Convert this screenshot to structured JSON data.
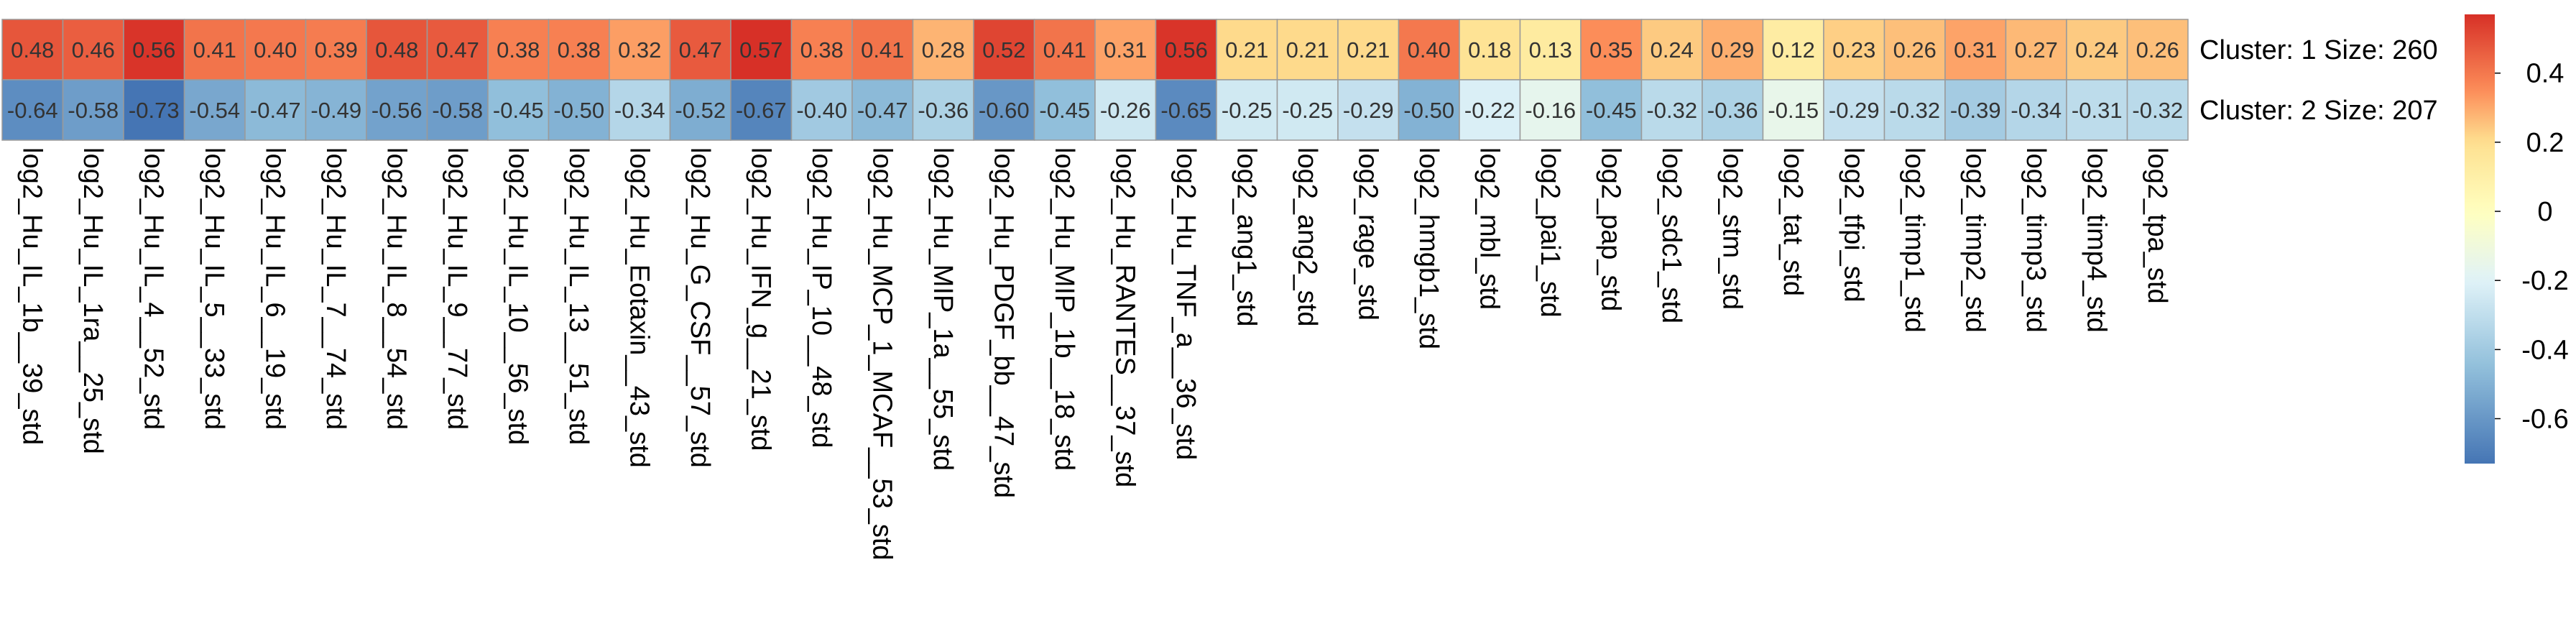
{
  "chart_data": {
    "type": "heatmap",
    "title": "",
    "xlabel": "",
    "ylabel": "",
    "columns": [
      "log2_Hu_IL_1b__39_std",
      "log2_Hu_IL_1ra__25_std",
      "log2_Hu_IL_4__52_std",
      "log2_Hu_IL_5__33_std",
      "log2_Hu_IL_6__19_std",
      "log2_Hu_IL_7__74_std",
      "log2_Hu_IL_8__54_std",
      "log2_Hu_IL_9__77_std",
      "log2_Hu_IL_10__56_std",
      "log2_Hu_IL_13__51_std",
      "log2_Hu_Eotaxin__43_std",
      "log2_Hu_G_CSF__57_std",
      "log2_Hu_IFN_g__21_std",
      "log2_Hu_IP_10__48_std",
      "log2_Hu_MCP_1_MCAF__53_std",
      "log2_Hu_MIP_1a__55_std",
      "log2_Hu_PDGF_bb__47_std",
      "log2_Hu_MIP_1b__18_std",
      "log2_Hu_RANTES__37_std",
      "log2_Hu_TNF_a__36_std",
      "log2_ang1_std",
      "log2_ang2_std",
      "log2_rage_std",
      "log2_hmgb1_std",
      "log2_mbl_std",
      "log2_pai1_std",
      "log2_pap_std",
      "log2_sdc1_std",
      "log2_stm_std",
      "log2_tat_std",
      "log2_tfpi_std",
      "log2_timp1_std",
      "log2_timp2_std",
      "log2_timp3_std",
      "log2_timp4_std",
      "log2_tpa_std"
    ],
    "rows": [
      {
        "label": "Cluster: 1 Size: 260",
        "values": [
          0.48,
          0.46,
          0.56,
          0.41,
          0.4,
          0.39,
          0.48,
          0.47,
          0.38,
          0.38,
          0.32,
          0.47,
          0.57,
          0.38,
          0.41,
          0.28,
          0.52,
          0.41,
          0.31,
          0.56,
          0.21,
          0.21,
          0.21,
          0.4,
          0.18,
          0.13,
          0.35,
          0.24,
          0.29,
          0.12,
          0.23,
          0.26,
          0.31,
          0.27,
          0.24,
          0.26
        ],
        "value_labels": [
          "0.48",
          "0.46",
          "0.56",
          "0.41",
          "0.40",
          "0.39",
          "0.48",
          "0.47",
          "0.38",
          "0.38",
          "0.32",
          "0.47",
          "0.57",
          "0.38",
          "0.41",
          "0.28",
          "0.52",
          "0.41",
          "0.31",
          "0.56",
          "0.21",
          "0.21",
          "0.21",
          "0.40",
          "0.18",
          "0.13",
          "0.35",
          "0.24",
          "0.29",
          "0.12",
          "0.23",
          "0.26",
          "0.31",
          "0.27",
          "0.24",
          "0.26"
        ]
      },
      {
        "label": "Cluster: 2 Size: 207",
        "values": [
          -0.64,
          -0.58,
          -0.73,
          -0.54,
          -0.47,
          -0.49,
          -0.56,
          -0.58,
          -0.45,
          -0.5,
          -0.34,
          -0.52,
          -0.67,
          -0.4,
          -0.47,
          -0.36,
          -0.6,
          -0.45,
          -0.26,
          -0.65,
          -0.25,
          -0.25,
          -0.29,
          -0.5,
          -0.22,
          -0.16,
          -0.45,
          -0.32,
          -0.36,
          -0.15,
          -0.29,
          -0.32,
          -0.39,
          -0.34,
          -0.31,
          -0.32
        ],
        "value_labels": [
          "-0.64",
          "-0.58",
          "-0.73",
          "-0.54",
          "-0.47",
          "-0.49",
          "-0.56",
          "-0.58",
          "-0.45",
          "-0.50",
          "-0.34",
          "-0.52",
          "-0.67",
          "-0.40",
          "-0.47",
          "-0.36",
          "-0.60",
          "-0.45",
          "-0.26",
          "-0.65",
          "-0.25",
          "-0.25",
          "-0.29",
          "-0.50",
          "-0.22",
          "-0.16",
          "-0.45",
          "-0.32",
          "-0.36",
          "-0.15",
          "-0.29",
          "-0.32",
          "-0.39",
          "-0.34",
          "-0.31",
          "-0.32"
        ]
      }
    ],
    "color_scale": {
      "min": -0.73,
      "max": 0.57,
      "stops": [
        {
          "value": -0.73,
          "color": "#4575b4"
        },
        {
          "value": -0.45,
          "color": "#91bfdb"
        },
        {
          "value": -0.2,
          "color": "#e0f3f8"
        },
        {
          "value": 0.0,
          "color": "#ffffbf"
        },
        {
          "value": 0.2,
          "color": "#fee090"
        },
        {
          "value": 0.35,
          "color": "#fc8d59"
        },
        {
          "value": 0.57,
          "color": "#d73027"
        }
      ]
    },
    "colorbar": {
      "ticks": [
        0.4,
        0.2,
        0,
        -0.2,
        -0.4,
        -0.6
      ],
      "tick_labels": [
        "0.4",
        "0.2",
        "0",
        "-0.2",
        "-0.4",
        "-0.6"
      ]
    },
    "grid": true,
    "legend": "colorbar-right"
  }
}
